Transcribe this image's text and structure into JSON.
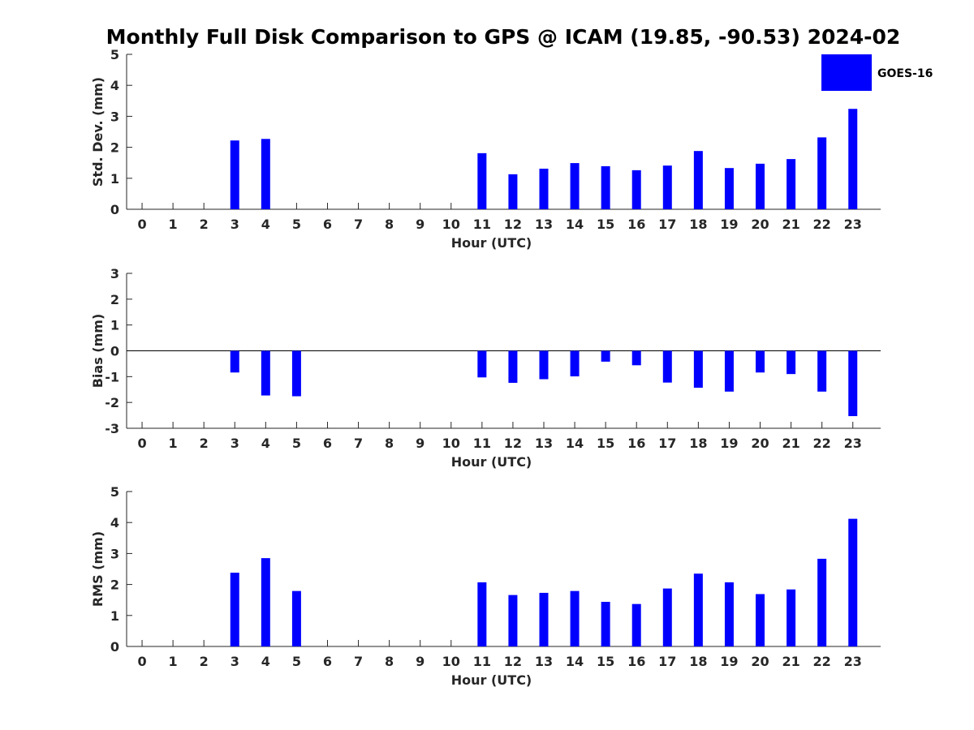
{
  "title": "Monthly Full Disk Comparison to GPS @ ICAM (19.85, -90.53) 2024-02",
  "legend": {
    "label": "GOES-16",
    "color": "#0000ff"
  },
  "chart_data": [
    {
      "type": "bar",
      "ylabel": "Std. Dev. (mm)",
      "xlabel": "Hour (UTC)",
      "ylim": [
        0,
        5
      ],
      "yticks": [
        0,
        1,
        2,
        3,
        4,
        5
      ],
      "categories": [
        "0",
        "1",
        "2",
        "3",
        "4",
        "5",
        "6",
        "7",
        "8",
        "9",
        "10",
        "11",
        "12",
        "13",
        "14",
        "15",
        "16",
        "17",
        "18",
        "19",
        "20",
        "21",
        "22",
        "23"
      ],
      "series": [
        {
          "name": "GOES-16",
          "color": "#0000ff",
          "values": [
            null,
            null,
            null,
            2.22,
            2.27,
            null,
            null,
            null,
            null,
            null,
            null,
            1.81,
            1.13,
            1.31,
            1.49,
            1.39,
            1.26,
            1.41,
            1.88,
            1.33,
            1.47,
            1.62,
            2.32,
            3.24
          ]
        }
      ]
    },
    {
      "type": "bar",
      "ylabel": "Bias (mm)",
      "xlabel": "Hour (UTC)",
      "ylim": [
        -3,
        3
      ],
      "yticks": [
        -3,
        -2,
        -1,
        0,
        1,
        2,
        3
      ],
      "zero_line": true,
      "categories": [
        "0",
        "1",
        "2",
        "3",
        "4",
        "5",
        "6",
        "7",
        "8",
        "9",
        "10",
        "11",
        "12",
        "13",
        "14",
        "15",
        "16",
        "17",
        "18",
        "19",
        "20",
        "21",
        "22",
        "23"
      ],
      "series": [
        {
          "name": "GOES-16",
          "color": "#0000ff",
          "values": [
            null,
            null,
            null,
            -0.84,
            -1.73,
            -1.76,
            null,
            null,
            null,
            null,
            null,
            -1.03,
            -1.24,
            -1.1,
            -0.99,
            -0.42,
            -0.56,
            -1.23,
            -1.43,
            -1.58,
            -0.84,
            -0.9,
            -1.58,
            -2.53
          ]
        }
      ]
    },
    {
      "type": "bar",
      "ylabel": "RMS (mm)",
      "xlabel": "Hour (UTC)",
      "ylim": [
        0,
        5
      ],
      "yticks": [
        0,
        1,
        2,
        3,
        4,
        5
      ],
      "categories": [
        "0",
        "1",
        "2",
        "3",
        "4",
        "5",
        "6",
        "7",
        "8",
        "9",
        "10",
        "11",
        "12",
        "13",
        "14",
        "15",
        "16",
        "17",
        "18",
        "19",
        "20",
        "21",
        "22",
        "23"
      ],
      "series": [
        {
          "name": "GOES-16",
          "color": "#0000ff",
          "values": [
            null,
            null,
            null,
            2.38,
            2.85,
            1.79,
            null,
            null,
            null,
            null,
            null,
            2.07,
            1.66,
            1.73,
            1.79,
            1.44,
            1.37,
            1.87,
            2.35,
            2.07,
            1.69,
            1.84,
            2.83,
            4.12
          ]
        }
      ]
    }
  ]
}
